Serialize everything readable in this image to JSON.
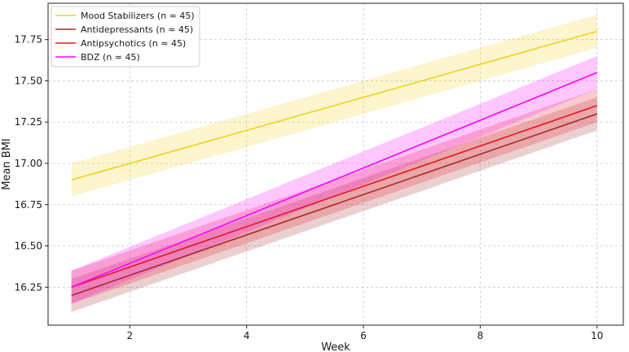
{
  "chart_data": {
    "type": "line",
    "title": "",
    "xlabel": "Week",
    "ylabel": "Mean BMI",
    "xlim": [
      0.6,
      10.45
    ],
    "ylim": [
      16.02,
      17.97
    ],
    "xticks": [
      2,
      4,
      6,
      8,
      10
    ],
    "yticks": [
      16.25,
      16.5,
      16.75,
      17.0,
      17.25,
      17.5,
      17.75
    ],
    "xtick_labels": [
      "2",
      "4",
      "6",
      "8",
      "10"
    ],
    "ytick_labels": [
      "16.25",
      "16.50",
      "16.75",
      "17.00",
      "17.25",
      "17.50",
      "17.75"
    ],
    "grid": true,
    "legend_position": "top-left",
    "series": [
      {
        "name": "Mood Stabilizers (n ≈ 45)",
        "color": "#f2d21b",
        "x": [
          1,
          10
        ],
        "y": [
          16.9,
          17.8
        ],
        "band": 0.1
      },
      {
        "name": "Antidepressants (n ≈ 45)",
        "color": "#a52a2a",
        "x": [
          1,
          10
        ],
        "y": [
          16.2,
          17.3
        ],
        "band": 0.1
      },
      {
        "name": "Antipsychotics (n ≈ 45)",
        "color": "#e8141e",
        "x": [
          1,
          10
        ],
        "y": [
          16.25,
          17.35
        ],
        "band": 0.1
      },
      {
        "name": "BDZ (n ≈ 45)",
        "color": "#ff00ff",
        "x": [
          1,
          10
        ],
        "y": [
          16.25,
          17.55
        ],
        "band": 0.1
      }
    ]
  }
}
